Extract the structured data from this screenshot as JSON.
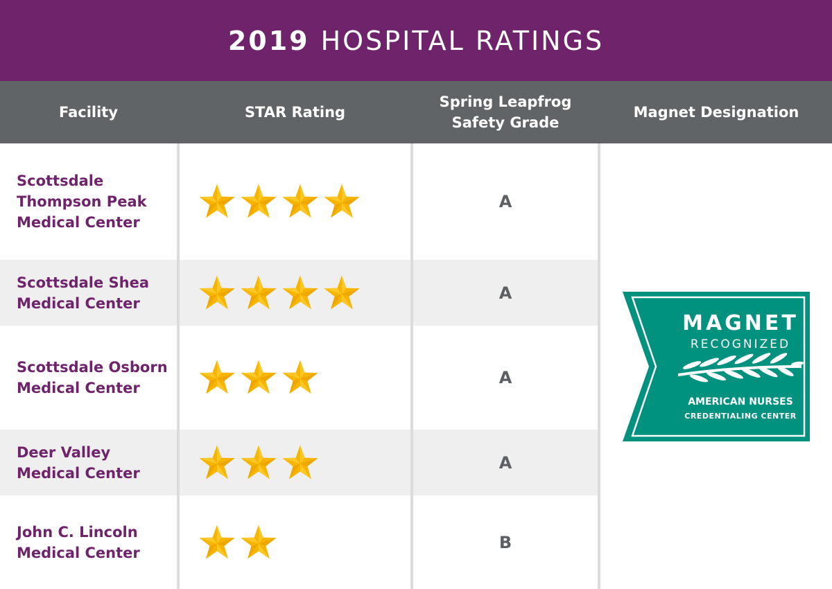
{
  "title": {
    "year": "2019",
    "rest": "HOSPITAL RATINGS"
  },
  "columns": {
    "facility": "Facility",
    "star_rating": "STAR Rating",
    "leapfrog_line1": "Spring Leapfrog",
    "leapfrog_line2": "Safety Grade",
    "magnet": "Magnet Designation"
  },
  "rows": [
    {
      "name_lines": [
        "Scottsdale",
        "Thompson Peak",
        "Medical Center"
      ],
      "stars": 4,
      "grade": "A"
    },
    {
      "name_lines": [
        "Scottsdale Shea",
        "Medical Center"
      ],
      "stars": 4,
      "grade": "A"
    },
    {
      "name_lines": [
        "Scottsdale Osborn",
        "Medical Center"
      ],
      "stars": 3,
      "grade": "A"
    },
    {
      "name_lines": [
        "Deer Valley",
        "Medical Center"
      ],
      "stars": 3,
      "grade": "A"
    },
    {
      "name_lines": [
        "John C. Lincoln",
        "Medical Center"
      ],
      "stars": 2,
      "grade": "B"
    }
  ],
  "badge": {
    "word1": "MAGNET",
    "word2": "RECOGNIZED",
    "org_line1": "AMERICAN NURSES",
    "org_line2": "CREDENTIALING CENTER",
    "color": "#00917f"
  },
  "colors": {
    "purple": "#6e236b",
    "header_gray": "#616466",
    "star_gold": "#f7b500"
  }
}
